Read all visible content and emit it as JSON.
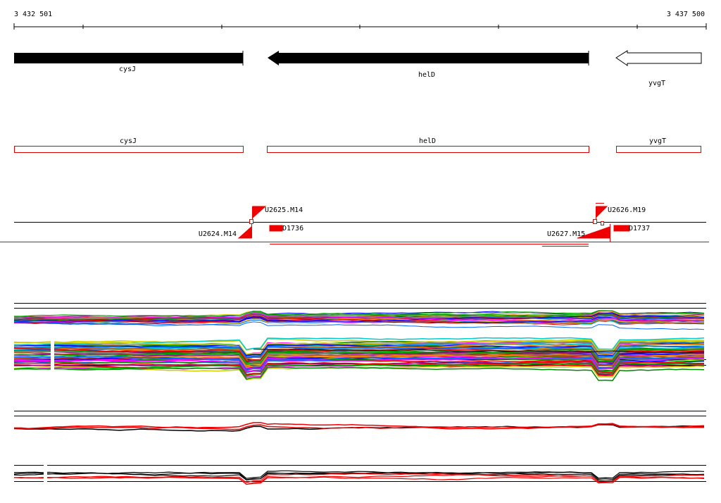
{
  "ruler": {
    "start": "3 432 501",
    "end": "3 437 500"
  },
  "genes": [
    {
      "label": "cysJ"
    },
    {
      "label": "helD"
    },
    {
      "label": "yvgT"
    }
  ],
  "cds": [
    {
      "label": "cysJ"
    },
    {
      "label": "helD"
    },
    {
      "label": "yvgT"
    }
  ],
  "features": [
    {
      "label": "U2625.M14"
    },
    {
      "label": "U2624.M14"
    },
    {
      "label": "D1736"
    },
    {
      "label": "U2626.M19"
    },
    {
      "label": "D1737"
    },
    {
      "label": "U2627.M15"
    }
  ]
}
